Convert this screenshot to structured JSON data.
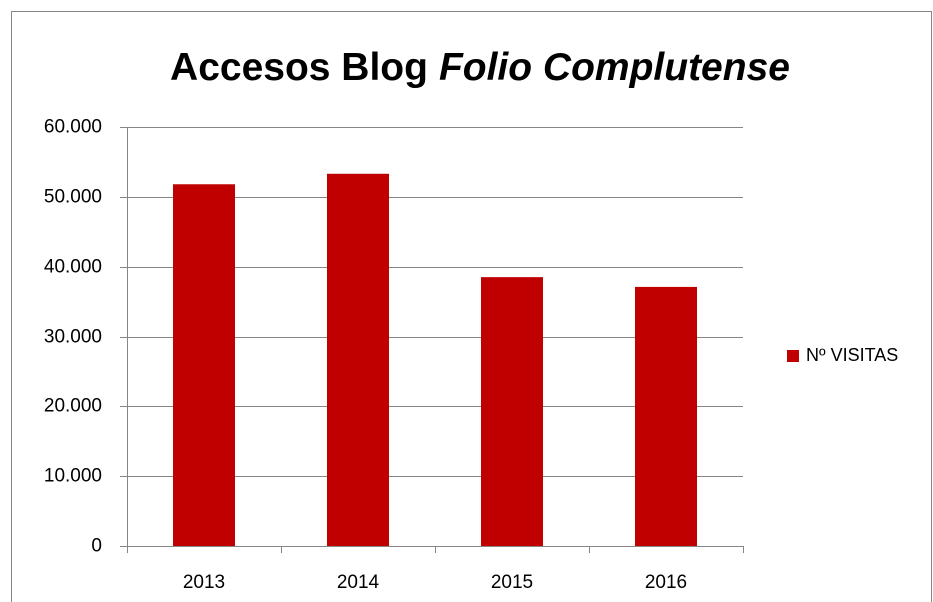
{
  "chart_data": {
    "type": "bar",
    "title": [
      "Accesos Blog",
      "Folio Complutense"
    ],
    "categories": [
      "2013",
      "2014",
      "2015",
      "2016"
    ],
    "series": [
      {
        "name": "Nº VISITAS",
        "color": "#c00000",
        "values": [
          51800,
          53300,
          38500,
          37100
        ]
      }
    ],
    "ylim": [
      0,
      60000
    ],
    "yticks": [
      0,
      {
        "value": 10000,
        "label": "10.000"
      },
      {
        "value": 20000,
        "label": "20.000"
      },
      {
        "value": 30000,
        "label": "30.000"
      },
      {
        "value": 40000,
        "label": "40.000"
      },
      {
        "value": 50000,
        "label": "50.000"
      },
      {
        "value": 60000,
        "label": "60.000"
      }
    ],
    "grid": true,
    "legend": "right"
  }
}
